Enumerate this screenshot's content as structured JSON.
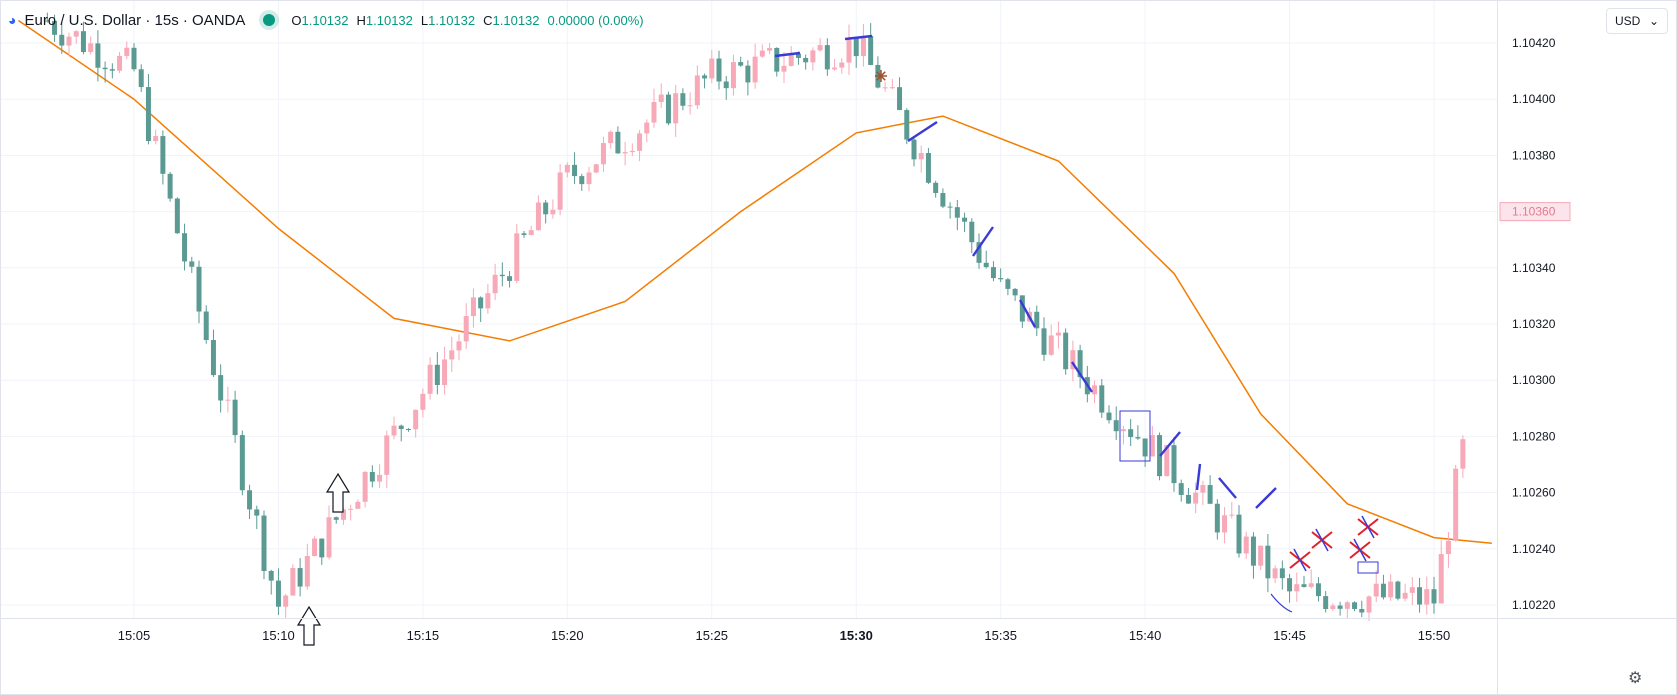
{
  "header": {
    "symbol": "Euro / U.S. Dollar · 15s · OANDA",
    "open_label": "O",
    "open": "1.10132",
    "high_label": "H",
    "high": "1.10132",
    "low_label": "L",
    "low": "1.10132",
    "close_label": "C",
    "close": "1.10132",
    "change": "0.00000 (0.00%)"
  },
  "currency": "USD",
  "chart_data": {
    "type": "candlestick",
    "x_ticks": [
      "15:05",
      "15:10",
      "15:15",
      "15:20",
      "15:25",
      "15:30",
      "15:35",
      "15:40",
      "15:45",
      "15:50"
    ],
    "x_ticks_bold": [
      "15:30"
    ],
    "y_ticks": [
      "1.10420",
      "1.10400",
      "1.10380",
      "1.10360",
      "1.10340",
      "1.10320",
      "1.10300",
      "1.10280",
      "1.10260",
      "1.10240",
      "1.10220"
    ],
    "y_range": [
      1.10214,
      1.10427
    ],
    "highlight_price": "1.10360",
    "grid": true,
    "series": [
      {
        "points": [
          [
            15.02,
            1.10428
          ],
          [
            15.05,
            1.1041
          ],
          [
            15.1,
            1.1022
          ],
          [
            15.2,
            1.10372
          ],
          [
            15.25,
            1.10408
          ],
          [
            15.3,
            1.1042
          ],
          [
            15.35,
            1.10332
          ],
          [
            15.4,
            1.10278
          ],
          [
            15.45,
            1.10224
          ],
          [
            15.5,
            1.10222
          ],
          [
            15.51,
            1.10275
          ]
        ]
      }
    ],
    "moving_average": {
      "color": "#f57c00",
      "points": [
        [
          15.01,
          1.10428
        ],
        [
          15.05,
          1.104
        ],
        [
          15.1,
          1.10354
        ],
        [
          15.14,
          1.10322
        ],
        [
          15.18,
          1.10314
        ],
        [
          15.22,
          1.10328
        ],
        [
          15.26,
          1.1036
        ],
        [
          15.3,
          1.10388
        ],
        [
          15.33,
          1.10394
        ],
        [
          15.37,
          1.10378
        ],
        [
          15.41,
          1.10338
        ],
        [
          15.44,
          1.10288
        ],
        [
          15.47,
          1.10256
        ],
        [
          15.5,
          1.10244
        ],
        [
          15.52,
          1.10242
        ]
      ]
    },
    "colors": {
      "up": "#f7a9b8",
      "down": "#5b9a93",
      "grid": "#f0f3fa",
      "axis_text": "#131722"
    }
  }
}
